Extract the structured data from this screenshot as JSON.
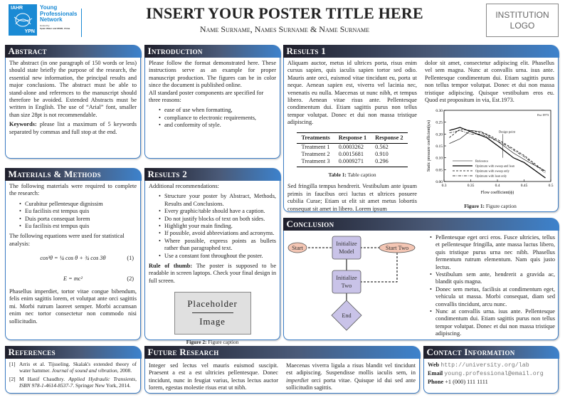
{
  "header": {
    "title": "INSERT YOUR POSTER TITLE HERE",
    "authors": "Name Surname, Names Surname & Name Surname",
    "institution_logo": "INSTITUTION LOGO",
    "logo": {
      "org": "IAHR",
      "abbr": "YPN",
      "line1": "Young",
      "line2": "Professionals",
      "line3": "Network",
      "hosted": "Hosted by",
      "host": "Spain Water and IWHR, China",
      "color": "#1a8ad4"
    }
  },
  "abstract": {
    "title": "Abstract",
    "text": "The abstract (in one paragraph of 150 words or less) should state briefly the purpose of the research, the essential new information, the principal results and major conclusions. The abstract must be able to stand-alone and references to the manuscript should therefore be avoided. Extended Abstracts must be written in English. The use of “Arial” font, smaller than size 28pt is not recommendable.",
    "keywords_label": "Keywords:",
    "keywords": " please list a maximum of 5 keywords separated by commas and full stop at the end."
  },
  "introduction": {
    "title": "Introduction",
    "p1": "Please follow the format demonstrated here. These instructions serve as an example for proper manuscript production. The figures can be in color since the document is published online.",
    "p2": "All standard poster components are specified for three reasons:",
    "bullets": [
      "ease of use when formatting,",
      "compliance to electronic requirements,",
      "and conformity of style."
    ]
  },
  "methods": {
    "title": "Materials & Methods",
    "p1": "The following materials were required to complete the research:",
    "bullets": [
      "Curabitur pellentesque dignissim",
      "Eu facilisis est tempus quis",
      "Duis porta consequat lorem",
      "Eu facilisis est tempus quis"
    ],
    "p2": "The following equations were used for statistical analysis:",
    "eq1": "cos³θ = ¼ cos θ + ¾ cos 3θ",
    "eq1_num": "(1)",
    "eq2": "E = mc²",
    "eq2_num": "(2)",
    "p3": "Phasellus imperdiet, tortor vitae congue bibendum, felis enim sagittis lorem, et volutpat ante orci sagittis mi. Morbi rutrum laoreet semper. Morbi accumsan enim nec tortor consectetur non commodo nisi sollicitudin."
  },
  "results2": {
    "title": "Results 2",
    "p1": "Additional recommendations:",
    "bullets": [
      "Structure your poster by Abstract, Methods, Results and Conclusions.",
      "Every graphic/table should have a caption.",
      "Do not justify blocks of text on both sides.",
      "Highlight your main finding.",
      "If possible, avoid abbreviations and acronyms.",
      "Where possible, express points as bullets rather than paragraphed text.",
      "Use a constant font throughout the poster."
    ],
    "rule_label": "Rule of thumb:",
    "rule": " The poster is supposed to be readable in screen laptops. Check your final design in full screen.",
    "placeholder_top": "Placeholder",
    "placeholder_bottom": "Image",
    "caption_label": "Figure 2:",
    "caption": " Figure caption"
  },
  "results1": {
    "title": "Results 1",
    "p1": "Aliquam auctor, metus id ultrices porta, risus enim cursus sapien, quis iaculis sapien tortor sed odio. Mauris ante orci, euismod vitae tincidunt eu, porta ut neque. Aenean sapien est, viverra vel lacinia nec, venenatis eu nulla. Maecenas ut nunc nibh, et tempus libero. Aenean vitae risus ante. Pellentesque condimentum dui. Etiam sagittis purus non tellus tempor volutpat. Donec et dui non massa tristique adipiscing.",
    "table": {
      "headers": [
        "Treatments",
        "Response 1",
        "Response 2"
      ],
      "rows": [
        [
          "Treatment 1",
          "0.0003262",
          "0.562"
        ],
        [
          "Treatment 2",
          "0.0015681",
          "0.910"
        ],
        [
          "Treatment 3",
          "0.0009271",
          "0.296"
        ]
      ]
    },
    "table_caption_label": "Table 1:",
    "table_caption": " Table caption",
    "p2": "Sed fringilla tempus hendrerit. Vestibulum ante ipsum primis in faucibus orci luctus et ultrices posuere cubilia Curae; Etiam ut elit sit amet metus lobortis consequat sit amet in libero. Lorem ipsum",
    "p3": "dolor sit amet, consectetur adipiscing elit. Phasellus vel sem magna. Nunc at convallis urna. isus ante. Pellentesque condimentum dui. Etiam sagittis purus non tellus tempor volutpat. Donec et dui non massa tristique adipiscing. Quisque vestibulum eros eu. Quod est propositum in via, Est.1973.",
    "figure_caption_label": "Figure 1:",
    "figure_caption": " Figure caption"
  },
  "figure1": {
    "type": "line",
    "xlabel": "Flow coefficient(ϕ)",
    "ylabel": "Static pressure coefficient(ψs)",
    "xlim": [
      0.3,
      0.5
    ],
    "ylim": [
      0,
      0.3
    ],
    "xticks": [
      "0.3",
      "0.35",
      "0.4",
      "0.45",
      "0.5"
    ],
    "yticks": [
      "0.00",
      "0.05",
      "0.10",
      "0.15",
      "0.20",
      "0.25",
      "0.30"
    ],
    "corner_label": "Est 1973",
    "annotation": "Design point",
    "annotation_x": 0.41,
    "series": [
      {
        "name": "Reference",
        "style": "thin",
        "x": [
          0.31,
          0.33,
          0.35,
          0.37,
          0.4,
          0.43,
          0.46,
          0.49
        ],
        "y": [
          0.16,
          0.18,
          0.215,
          0.21,
          0.17,
          0.12,
          0.08,
          0.045
        ]
      },
      {
        "name": "Optimum with sweep and lean",
        "style": "thick",
        "x": [
          0.31,
          0.33,
          0.35,
          0.38,
          0.41,
          0.43,
          0.45,
          0.49
        ],
        "y": [
          0.215,
          0.228,
          0.21,
          0.185,
          0.135,
          0.1,
          0.08,
          0.015
        ]
      },
      {
        "name": "Optimum with sweep only",
        "style": "dashed",
        "x": [
          0.31,
          0.33,
          0.35,
          0.38,
          0.41,
          0.45,
          0.49
        ],
        "y": [
          0.185,
          0.22,
          0.215,
          0.2,
          0.165,
          0.11,
          0.04
        ]
      },
      {
        "name": "Optimum with lean only",
        "style": "dashdot",
        "x": [
          0.31,
          0.33,
          0.35,
          0.37,
          0.41,
          0.45,
          0.49
        ],
        "y": [
          0.205,
          0.215,
          0.2,
          0.2,
          0.16,
          0.105,
          0.035
        ]
      }
    ]
  },
  "conclusion": {
    "title": "Conclusion",
    "flow": {
      "start": "Start",
      "start_two": "Start Two",
      "init_model_1": "Initialize",
      "init_model_2": "Model",
      "init_two_1": "Initialize",
      "init_two_2": "Two",
      "end": "End",
      "node_color": "#c9c3e8",
      "start_color": "#f4c6b4"
    },
    "bullets": [
      "Pellentesque eget orci eros. Fusce ultricies, tellus et pellentesque fringilla, ante massa luctus libero, quis tristique purus urna nec nibh. Phasellus fermentum rutrum elementum. Nam quis justo lectus.",
      "Vestibulum sem ante, hendrerit a gravida ac, blandit quis magna.",
      "Donec sem metus, facilisis at condimentum eget, vehicula ut massa. Morbi consequat, diam sed convallis tincidunt, arcu nunc.",
      "Nunc at convallis urna. isus ante. Pellentesque condimentum dui. Etiam sagittis purus non tellus tempor volutpat. Donec et dui non massa tristique adipiscing."
    ]
  },
  "references": {
    "title": "References",
    "items": [
      {
        "num": "[1]",
        "text": "Arris et al. Tijsseling. Skalak's extended theory of water hammer. ",
        "italic": "Journal of sound and vibration",
        "tail": ", 2008."
      },
      {
        "num": "[2]",
        "text": "M Hanif Chaudhry. ",
        "italic": "Applied Hydraulic Transients, ISBN 978-1-4614-8537-7",
        "tail": ". Springer New York, 2014."
      }
    ]
  },
  "future": {
    "title": "Future Research",
    "p1": "Integer sed lectus vel mauris euismod suscipit. Praesent a est a est ultricies pellentesque. Donec tincidunt, nunc in feugiat varius, lectus lectus auctor lorem, egestas molestie risus erat ut nibh.",
    "p2a": "Maecenas viverra ligula a risus blandit vel tincidunt est adipiscing. Suspendisse mollis iaculis sem, in ",
    "p2i": "imperdiet",
    "p2b": " orci porta vitae. Quisque id dui sed ante sollicitudin sagittis."
  },
  "contact": {
    "title": "Contact Information",
    "web_label": "Web",
    "web": "http://university.org/lab",
    "email_label": "Email",
    "email": "young.professional@email.org",
    "phone_label": "Phone",
    "phone": "+1 (000) 111 1111"
  }
}
